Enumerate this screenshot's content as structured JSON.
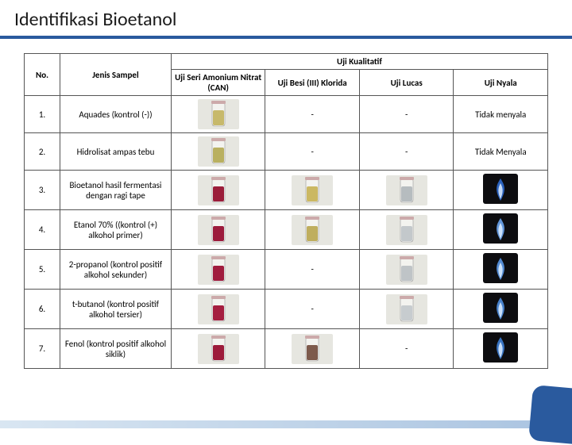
{
  "title": "Identifikasi Bioetanol",
  "headers": {
    "no": "No.",
    "jenis": "Jenis Sampel",
    "kual": "Uji Kualitatif",
    "c1": "Uji Seri Amonium Nitrat (CAN)",
    "c2": "Uji Besi (III) Klorida",
    "c3": "Uji Lucas",
    "c4": "Uji Nyala"
  },
  "rows": [
    {
      "no": "1.",
      "jenis": "Aquades (kontrol (-))",
      "c1_color": "#c7b96b",
      "c2": "-",
      "c3": "-",
      "c4": "Tidak menyala"
    },
    {
      "no": "2.",
      "jenis": "Hidrolisat ampas tebu",
      "c1_color": "#b9b060",
      "c2": "-",
      "c3": "-",
      "c4": "Tidak Menyala"
    },
    {
      "no": "3.",
      "jenis": "Bioetanol hasil fermentasi dengan ragi tape",
      "c1_color": "#9b1d3a",
      "c2_color": "#cbb862",
      "c3_color": "#b6bcbf",
      "c4_flame": "#2f6bd1"
    },
    {
      "no": "4.",
      "jenis": "Etanol 70% ((kontrol (+) alkohol primer)",
      "c1_color": "#9c1b3c",
      "c2_color": "#bfae5e",
      "c3_color": "#c3c8cb",
      "c4_flame": "#6aa4ef"
    },
    {
      "no": "5.",
      "jenis": "2-propanol (kontrol positif alkohol sekunder)",
      "c1_color": "#a01c3e",
      "c2": "-",
      "c3_color": "#bfc4c7",
      "c4_flame": "#5a98e8"
    },
    {
      "no": "6.",
      "jenis": "t-butanol (kontrol positif alkohol tersier)",
      "c1_color": "#a51e40",
      "c2": "-",
      "c3_color": "#c7cccf",
      "c4_flame": "#4e8ee0"
    },
    {
      "no": "7.",
      "jenis": "Fenol (kontrol positif alkohol siklik)",
      "c1_color": "#9d1b3b",
      "c2_color": "#7d5a4c",
      "c3": "-",
      "c4_flame": "#3d7ed6"
    }
  ],
  "colors": {
    "accent": "#2a5a9e",
    "border": "#555555"
  }
}
